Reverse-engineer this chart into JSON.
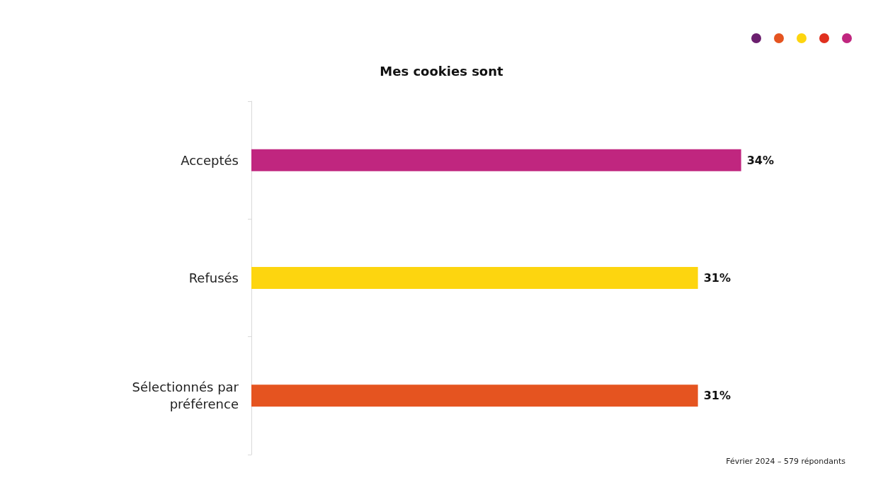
{
  "chart_data": {
    "type": "bar",
    "orientation": "horizontal",
    "title": "Mes cookies sont",
    "categories": [
      "Acceptés",
      "Refusés",
      "Sélectionnés par\npréférence"
    ],
    "values": [
      34,
      31,
      31
    ],
    "value_labels": [
      "34%",
      "31%",
      "31%"
    ],
    "colors": [
      "#c0267f",
      "#fdd50f",
      "#e55420"
    ],
    "grid": false,
    "annotations": [
      "Février 2024 – 579 répondants"
    ]
  }
}
